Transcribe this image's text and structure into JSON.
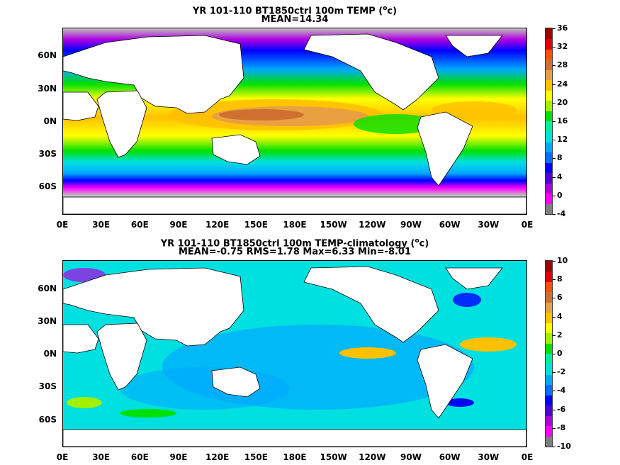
{
  "panels": [
    {
      "title_line1": "YR 101-110 BT1850ctrl 100m TEMP",
      "title_unit": "c",
      "title_line2": "MEAN=14.34",
      "colorbar_labels": [
        "36",
        "32",
        "28",
        "24",
        "20",
        "16",
        "12",
        "8",
        "4",
        "0",
        "-4"
      ]
    },
    {
      "title_line1": "YR 101-110 BT1850ctrl 100m TEMP-climatology",
      "title_unit": "c",
      "title_line2": "MEAN=-0.75   RMS=1.78   Max=6.33   Min=-8.01",
      "colorbar_labels": [
        "10",
        "8",
        "6",
        "4",
        "2",
        "0",
        "-2",
        "-4",
        "-6",
        "-8",
        "-10"
      ]
    }
  ],
  "lat_labels": [
    "60N",
    "30N",
    "0N",
    "30S",
    "60S"
  ],
  "lon_labels": [
    "0E",
    "30E",
    "60E",
    "90E",
    "120E",
    "150E",
    "180E",
    "150W",
    "120W",
    "90W",
    "60W",
    "30W",
    "0E"
  ],
  "colors": {
    "palette": [
      "#7f7f7f",
      "#ff00ff",
      "#b000e0",
      "#5000d0",
      "#0000ff",
      "#0070ff",
      "#00a8ff",
      "#00e0e0",
      "#00f0a0",
      "#00e000",
      "#a0f000",
      "#ffff00",
      "#ffc000",
      "#e8a040",
      "#d07030",
      "#ff5000",
      "#e00000",
      "#a00000"
    ],
    "land": "#ffffff",
    "ice_grey": "#c0c0c0"
  }
}
